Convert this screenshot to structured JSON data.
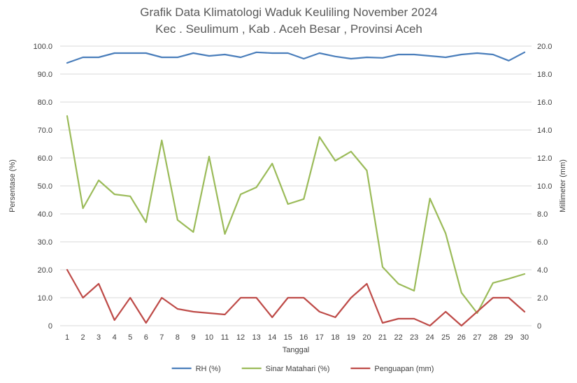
{
  "chart_data": {
    "type": "line",
    "title": "Grafik Data Klimatologi Waduk Keuliling November 2024",
    "subtitle": "Kec . Seulimum , Kab . Aceh Besar , Provinsi  Aceh",
    "xlabel": "Tanggal",
    "ylabel_left": "Persentase (%)",
    "ylabel_right": "Millimeter (mm)",
    "x": [
      1,
      2,
      3,
      4,
      5,
      6,
      7,
      8,
      9,
      10,
      11,
      12,
      13,
      14,
      15,
      16,
      17,
      18,
      19,
      20,
      21,
      22,
      23,
      24,
      25,
      26,
      27,
      28,
      29,
      30
    ],
    "x_tick_labels": [
      "1",
      "2",
      "3",
      "4",
      "5",
      "6",
      "7",
      "8",
      "9",
      "10",
      "11",
      "12",
      "13",
      "14",
      "15",
      "16",
      "17",
      "18",
      "19",
      "20",
      "21",
      "22",
      "23",
      "24",
      "25",
      "26",
      "27",
      "28",
      "29",
      "30"
    ],
    "ylim_left": [
      0,
      100
    ],
    "ylim_right": [
      0,
      20
    ],
    "y_left_ticks": [
      "0",
      "10.0",
      "20.0",
      "30.0",
      "40.0",
      "50.0",
      "60.0",
      "70.0",
      "80.0",
      "90.0",
      "100.0"
    ],
    "y_right_ticks": [
      "0",
      "2.0",
      "4.0",
      "6.0",
      "8.0",
      "10.0",
      "12.0",
      "14.0",
      "16.0",
      "18.0",
      "20.0"
    ],
    "grid": true,
    "legend_position": "bottom",
    "series": [
      {
        "name": "RH (%)",
        "axis": "left",
        "color": "#4a7ebb",
        "values": [
          94,
          96,
          96,
          97.5,
          97.5,
          97.5,
          96,
          96,
          97.5,
          96.5,
          97,
          96,
          97.8,
          97.5,
          97.5,
          95.5,
          97.5,
          96.3,
          95.5,
          96,
          95.8,
          97,
          97,
          96.5,
          96,
          97,
          97.5,
          97,
          94.8,
          97.8
        ]
      },
      {
        "name": "Sinar Matahari (%)",
        "axis": "left",
        "color": "#9bbb59",
        "values": [
          75,
          42,
          52,
          47,
          46.3,
          37,
          66.3,
          37.8,
          33.5,
          60.5,
          32.8,
          47,
          49.5,
          58,
          43.5,
          45.3,
          67.5,
          59,
          62.3,
          55.5,
          21,
          15,
          12.5,
          45.5,
          33,
          11.8,
          4.5,
          15.3,
          16.8,
          18.5
        ]
      },
      {
        "name": "Penguapan (mm)",
        "axis": "right",
        "color": "#be4b48",
        "values": [
          4,
          2,
          3,
          0.4,
          2,
          0.2,
          2,
          1.2,
          1,
          0.9,
          0.8,
          2,
          2,
          0.6,
          2,
          2,
          1,
          0.6,
          2,
          3,
          0.2,
          0.5,
          0.5,
          0,
          1,
          0,
          1,
          2,
          2,
          1
        ]
      }
    ]
  }
}
